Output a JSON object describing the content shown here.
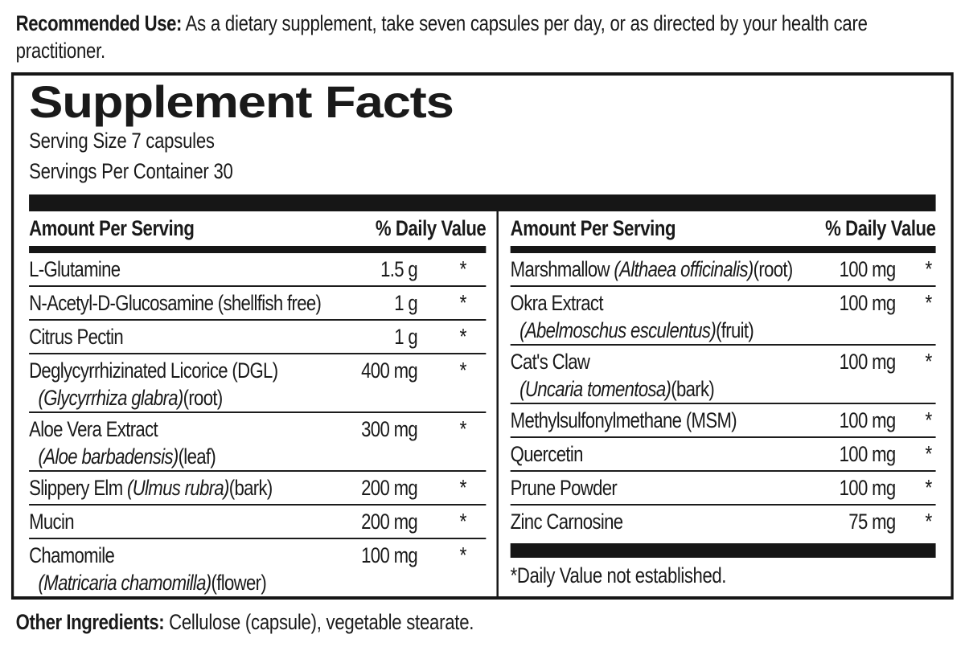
{
  "colors": {
    "ink": "#1a1a1a",
    "bar": "#161616",
    "background": "#ffffff"
  },
  "recommended_use": {
    "label": "Recommended Use:",
    "text": "As a dietary supplement, take seven capsules per day, or as directed by your health care practitioner."
  },
  "panel": {
    "title": "Supplement Facts",
    "serving_size": "Serving Size 7 capsules",
    "servings_per_container": "Servings Per Container 30",
    "columns": {
      "left": {
        "header": {
          "amount_label": "Amount Per Serving",
          "dv_label": "% Daily Value"
        },
        "rows": [
          {
            "name_pre": "L-Glutamine",
            "amount": "1.5 g",
            "dv": "*"
          },
          {
            "name_pre": "N-Acetyl-D-Glucosamine (shellfish free)",
            "amount": "1 g",
            "dv": "*"
          },
          {
            "name_pre": "Citrus Pectin",
            "amount": "1 g",
            "dv": "*"
          },
          {
            "name_pre": "Deglycyrrhizinated Licorice (DGL)",
            "amount": "400 mg",
            "dv": "*",
            "sub_it": "(Glycyrrhiza glabra)",
            "sub_post": "(root)"
          },
          {
            "name_pre": "Aloe Vera Extract",
            "amount": "300 mg",
            "dv": "*",
            "sub_it": "(Aloe barbadensis)",
            "sub_post": "(leaf)"
          },
          {
            "name_pre": "Slippery Elm",
            "name_it": " (Ulmus rubra)",
            "name_post": "(bark)",
            "amount": "200 mg",
            "dv": "*"
          },
          {
            "name_pre": "Mucin",
            "amount": "200 mg",
            "dv": "*"
          },
          {
            "name_pre": "Chamomile",
            "amount": "100 mg",
            "dv": "*",
            "sub_it": "(Matricaria chamomilla)",
            "sub_post": "(flower)"
          }
        ]
      },
      "right": {
        "header": {
          "amount_label": "Amount Per Serving",
          "dv_label": "% Daily Value"
        },
        "rows": [
          {
            "name_pre": "Marshmallow",
            "name_it": " (Althaea officinalis)",
            "name_post": "(root)",
            "amount": "100 mg",
            "dv": "*"
          },
          {
            "name_pre": "Okra Extract",
            "amount": "100 mg",
            "dv": "*",
            "sub_it": "(Abelmoschus esculentus)",
            "sub_post": "(fruit)"
          },
          {
            "name_pre": "Cat's Claw",
            "amount": "100 mg",
            "dv": "*",
            "sub_it": "(Uncaria tomentosa)",
            "sub_post": "(bark)"
          },
          {
            "name_pre": "Methylsulfonylmethane (MSM)",
            "amount": "100 mg",
            "dv": "*"
          },
          {
            "name_pre": "Quercetin",
            "amount": "100 mg",
            "dv": "*"
          },
          {
            "name_pre": "Prune Powder",
            "amount": "100 mg",
            "dv": "*"
          },
          {
            "name_pre": "Zinc Carnosine",
            "amount": "75 mg",
            "dv": "*"
          }
        ],
        "footnote": "*Daily Value not established."
      }
    }
  },
  "other_ingredients": {
    "label": "Other Ingredients:",
    "text": "Cellulose (capsule), vegetable stearate."
  }
}
